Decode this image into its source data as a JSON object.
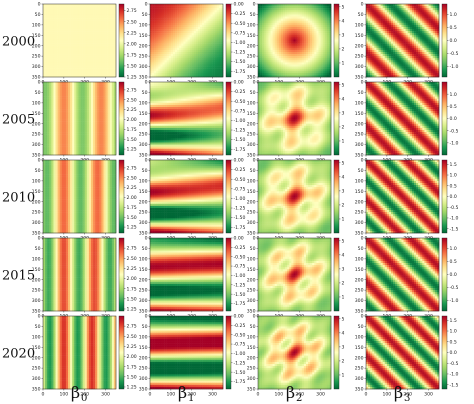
{
  "chart_data": {
    "type": "heatmap",
    "colormap": "RdYlGn_r",
    "row_labels": [
      "2000",
      "2005",
      "2010",
      "2015",
      "2020"
    ],
    "column_labels": [
      {
        "symbol": "β",
        "subscript": "0"
      },
      {
        "symbol": "β",
        "subscript": "1"
      },
      {
        "symbol": "β",
        "subscript": "2"
      },
      {
        "symbol": "β",
        "subscript": "3"
      }
    ],
    "x_ticks": [
      "0",
      "100",
      "200",
      "300"
    ],
    "y_ticks": [
      "0",
      "50",
      "100",
      "150",
      "200",
      "250",
      "300",
      "350"
    ],
    "grid_size": 350,
    "colorbars": [
      [
        {
          "min": 1.25,
          "max": 2.9,
          "ticks": [
            "1.25",
            "1.50",
            "1.75",
            "2.00",
            "2.25",
            "2.50",
            "2.75"
          ]
        },
        {
          "min": -1.9,
          "max": 0.0,
          "ticks": [
            "0.00",
            "-0.25",
            "-0.50",
            "-0.75",
            "-1.00",
            "-1.25",
            "-1.50",
            "-1.75"
          ]
        },
        {
          "min": 0.0,
          "max": 5.2,
          "ticks": [
            "1",
            "2",
            "3",
            "4",
            "5"
          ]
        },
        {
          "min": -1.4,
          "max": 1.4,
          "ticks": [
            "1.0",
            "0.5",
            "0.0",
            "-0.5",
            "-1.0"
          ]
        }
      ],
      [
        {
          "min": 1.1,
          "max": 2.95,
          "ticks": [
            "1.25",
            "1.50",
            "1.75",
            "2.00",
            "2.25",
            "2.50",
            "2.75"
          ]
        },
        {
          "min": -1.9,
          "max": 0.0,
          "ticks": [
            "0.00",
            "-0.25",
            "-0.50",
            "-0.75",
            "-1.00",
            "-1.25",
            "-1.50",
            "-1.75"
          ]
        },
        {
          "min": 0.0,
          "max": 5.2,
          "ticks": [
            "1",
            "2",
            "3",
            "4",
            "5"
          ]
        },
        {
          "min": -1.5,
          "max": 1.5,
          "ticks": [
            "1.0",
            "0.5",
            "0.0",
            "-0.5",
            "-1.0"
          ]
        }
      ],
      [
        {
          "min": 1.1,
          "max": 2.95,
          "ticks": [
            "1.25",
            "1.50",
            "1.75",
            "2.00",
            "2.25",
            "2.50",
            "2.75"
          ]
        },
        {
          "min": -1.9,
          "max": 0.0,
          "ticks": [
            "0.00",
            "-0.25",
            "-0.50",
            "-0.75",
            "-1.00",
            "-1.25",
            "-1.50",
            "-1.75"
          ]
        },
        {
          "min": 0.0,
          "max": 5.2,
          "ticks": [
            "1",
            "2",
            "3",
            "4",
            "5"
          ]
        },
        {
          "min": -1.7,
          "max": 1.7,
          "ticks": [
            "1.5",
            "1.0",
            "0.5",
            "0.0",
            "-0.5",
            "-1.0",
            "-1.5"
          ]
        }
      ],
      [
        {
          "min": 1.2,
          "max": 3.0,
          "ticks": [
            "1.25",
            "1.50",
            "1.75",
            "2.00",
            "2.25",
            "2.50",
            "2.75"
          ]
        },
        {
          "min": -1.95,
          "max": 0.0,
          "ticks": [
            "0.00",
            "-0.25",
            "-0.50",
            "-0.75",
            "-1.00",
            "-1.25",
            "-1.50",
            "-1.75"
          ]
        },
        {
          "min": 0.0,
          "max": 5.2,
          "ticks": [
            "1",
            "2",
            "3",
            "4",
            "5"
          ]
        },
        {
          "min": -1.4,
          "max": 1.4,
          "ticks": [
            "1.0",
            "0.5",
            "0.0",
            "-0.5",
            "-1.0"
          ]
        }
      ],
      [
        {
          "min": 1.2,
          "max": 3.0,
          "ticks": [
            "1.25",
            "1.50",
            "1.75",
            "2.00",
            "2.25",
            "2.50",
            "2.75"
          ]
        },
        {
          "min": -1.95,
          "max": 0.0,
          "ticks": [
            "0.00",
            "-0.25",
            "-0.50",
            "-0.75",
            "-1.00",
            "-1.25",
            "-1.50",
            "-1.75"
          ]
        },
        {
          "min": 0.0,
          "max": 5.2,
          "ticks": [
            "1",
            "2",
            "3",
            "4",
            "5"
          ]
        },
        {
          "min": -1.7,
          "max": 1.7,
          "ticks": [
            "1.5",
            "1.0",
            "0.5",
            "0.0",
            "-0.5",
            "-1.0",
            "-1.5"
          ]
        }
      ]
    ]
  }
}
